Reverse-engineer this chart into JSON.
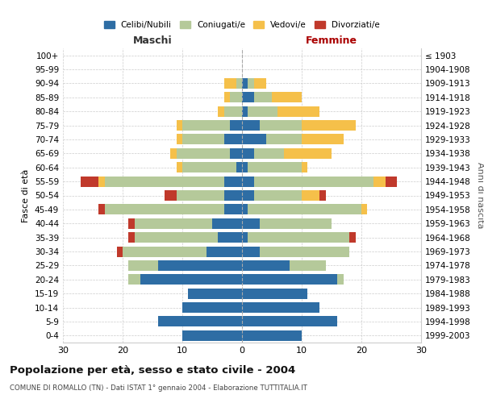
{
  "age_groups": [
    "0-4",
    "5-9",
    "10-14",
    "15-19",
    "20-24",
    "25-29",
    "30-34",
    "35-39",
    "40-44",
    "45-49",
    "50-54",
    "55-59",
    "60-64",
    "65-69",
    "70-74",
    "75-79",
    "80-84",
    "85-89",
    "90-94",
    "95-99",
    "100+"
  ],
  "birth_years": [
    "1999-2003",
    "1994-1998",
    "1989-1993",
    "1984-1988",
    "1979-1983",
    "1974-1978",
    "1969-1973",
    "1964-1968",
    "1959-1963",
    "1954-1958",
    "1949-1953",
    "1944-1948",
    "1939-1943",
    "1934-1938",
    "1929-1933",
    "1924-1928",
    "1919-1923",
    "1914-1918",
    "1909-1913",
    "1904-1908",
    "≤ 1903"
  ],
  "maschi": {
    "celibi": [
      10,
      14,
      10,
      9,
      17,
      14,
      6,
      4,
      5,
      3,
      3,
      3,
      1,
      2,
      3,
      2,
      0,
      0,
      0,
      0,
      0
    ],
    "coniugati": [
      0,
      0,
      0,
      0,
      2,
      5,
      14,
      14,
      13,
      20,
      8,
      20,
      9,
      9,
      7,
      8,
      3,
      2,
      1,
      0,
      0
    ],
    "vedovi": [
      0,
      0,
      0,
      0,
      0,
      0,
      0,
      0,
      0,
      0,
      0,
      1,
      1,
      1,
      1,
      1,
      1,
      1,
      2,
      0,
      0
    ],
    "divorziati": [
      0,
      0,
      0,
      0,
      0,
      0,
      1,
      1,
      1,
      1,
      2,
      3,
      0,
      0,
      0,
      0,
      0,
      0,
      0,
      0,
      0
    ]
  },
  "femmine": {
    "nubili": [
      10,
      16,
      13,
      11,
      16,
      8,
      3,
      1,
      3,
      1,
      2,
      2,
      1,
      2,
      4,
      3,
      1,
      2,
      1,
      0,
      0
    ],
    "coniugate": [
      0,
      0,
      0,
      0,
      1,
      6,
      15,
      17,
      12,
      19,
      8,
      20,
      9,
      5,
      6,
      7,
      5,
      3,
      1,
      0,
      0
    ],
    "vedove": [
      0,
      0,
      0,
      0,
      0,
      0,
      0,
      0,
      0,
      1,
      3,
      2,
      1,
      8,
      7,
      9,
      7,
      5,
      2,
      0,
      0
    ],
    "divorziate": [
      0,
      0,
      0,
      0,
      0,
      0,
      0,
      1,
      0,
      0,
      1,
      2,
      0,
      0,
      0,
      0,
      0,
      0,
      0,
      0,
      0
    ]
  },
  "colors": {
    "celibi": "#2e6da4",
    "coniugati": "#b5c99a",
    "vedovi": "#f5c04a",
    "divorziati": "#c0392b"
  },
  "title": "Popolazione per età, sesso e stato civile - 2004",
  "subtitle": "COMUNE DI ROMALLO (TN) - Dati ISTAT 1° gennaio 2004 - Elaborazione TUTTITALIA.IT",
  "xlabel_left": "Maschi",
  "xlabel_right": "Femmine",
  "ylabel_left": "Fasce di età",
  "ylabel_right": "Anni di nascita",
  "xlim": 30,
  "background_color": "#ffffff",
  "grid_color": "#cccccc"
}
